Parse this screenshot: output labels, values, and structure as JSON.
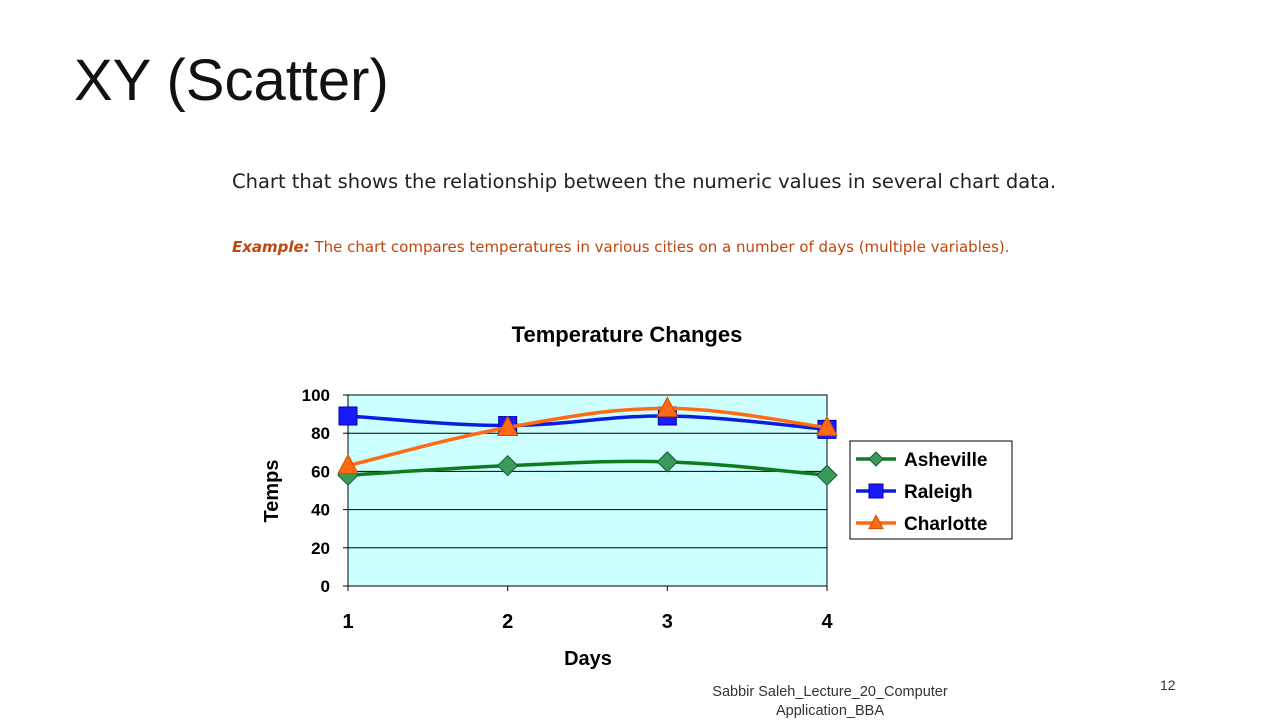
{
  "slide": {
    "title": "XY (Scatter)",
    "body": "Chart that shows the relationship between the numeric values in several chart data.",
    "example_label": "Example:",
    "example_text": " The chart compares temperatures in various cities on a number of days (multiple variables).",
    "footer": "Sabbir Saleh_Lecture_20_Computer Application_BBA",
    "page_number": "12"
  },
  "chart_data": {
    "type": "line",
    "title": "Temperature Changes",
    "xlabel": "Days",
    "ylabel": "Temps",
    "x": [
      1,
      2,
      3,
      4
    ],
    "xlim": [
      1,
      4
    ],
    "ylim": [
      0,
      100
    ],
    "yticks": [
      0,
      20,
      40,
      60,
      80,
      100
    ],
    "xticks": [
      1,
      2,
      3,
      4
    ],
    "grid": "horizontal",
    "plot_background": "#ccffff",
    "legend_position": "right",
    "series": [
      {
        "name": "Asheville",
        "values": [
          58,
          63,
          65,
          58
        ],
        "color": "#0e7c1e",
        "marker": "diamond",
        "marker_color": "#3a9a5c"
      },
      {
        "name": "Raleigh",
        "values": [
          89,
          84,
          89,
          82
        ],
        "color": "#0a1ee0",
        "marker": "square",
        "marker_color": "#1a1aff"
      },
      {
        "name": "Charlotte",
        "values": [
          63,
          83,
          93,
          83
        ],
        "color": "#ff6a13",
        "marker": "triangle",
        "marker_color": "#ff6a13"
      }
    ]
  }
}
